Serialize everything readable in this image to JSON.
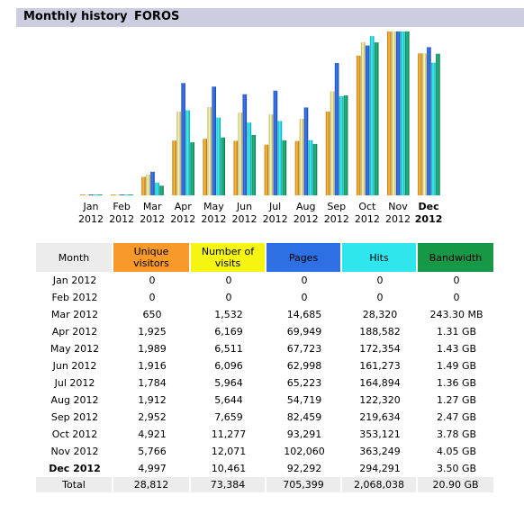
{
  "header": {
    "title": "Monthly history",
    "site": "FOROS"
  },
  "colors": {
    "unique_visitors": "#f89a2a",
    "visits": "#f0e08c",
    "pages": "#2d63d8",
    "hits": "#22d8e8",
    "bandwidth": "#159c6a",
    "header_bg": "#cccdde"
  },
  "chart_data": {
    "type": "bar",
    "categories": [
      "Jan 2012",
      "Feb 2012",
      "Mar 2012",
      "Apr 2012",
      "May 2012",
      "Jun 2012",
      "Jul 2012",
      "Aug 2012",
      "Sep 2012",
      "Oct 2012",
      "Nov 2012",
      "Dec 2012"
    ],
    "month_labels": [
      "Jan",
      "Feb",
      "Mar",
      "Apr",
      "May",
      "Jun",
      "Jul",
      "Aug",
      "Sep",
      "Oct",
      "Nov",
      "Dec"
    ],
    "year_labels": [
      "2012",
      "2012",
      "2012",
      "2012",
      "2012",
      "2012",
      "2012",
      "2012",
      "2012",
      "2012",
      "2012",
      "2012"
    ],
    "current_index": 11,
    "series": [
      {
        "key": "unique_visitors",
        "values": [
          0,
          0,
          650,
          1925,
          1989,
          1916,
          1784,
          1912,
          2952,
          4921,
          5766,
          4997
        ]
      },
      {
        "key": "visits",
        "values": [
          0,
          0,
          1532,
          6169,
          6511,
          6096,
          5964,
          5644,
          7659,
          11277,
          12071,
          10461
        ]
      },
      {
        "key": "pages",
        "values": [
          0,
          0,
          14685,
          69949,
          67723,
          62998,
          65223,
          54719,
          82459,
          93291,
          102060,
          92292
        ]
      },
      {
        "key": "hits",
        "values": [
          0,
          0,
          28320,
          188582,
          172354,
          161273,
          164894,
          122320,
          219634,
          353121,
          363249,
          294291
        ]
      },
      {
        "key": "bandwidth_gb",
        "values": [
          0,
          0,
          0.2376,
          1.31,
          1.43,
          1.49,
          1.36,
          1.27,
          2.47,
          3.78,
          4.05,
          3.5
        ]
      }
    ]
  },
  "table": {
    "headers": {
      "month": "Month",
      "unique_visitors": [
        "Unique",
        "visitors"
      ],
      "visits": [
        "Number of",
        "visits"
      ],
      "pages": "Pages",
      "hits": "Hits",
      "bandwidth": "Bandwidth"
    },
    "rows": [
      [
        "Jan 2012",
        "0",
        "0",
        "0",
        "0",
        "0"
      ],
      [
        "Feb 2012",
        "0",
        "0",
        "0",
        "0",
        "0"
      ],
      [
        "Mar 2012",
        "650",
        "1,532",
        "14,685",
        "28,320",
        "243.30 MB"
      ],
      [
        "Apr 2012",
        "1,925",
        "6,169",
        "69,949",
        "188,582",
        "1.31 GB"
      ],
      [
        "May 2012",
        "1,989",
        "6,511",
        "67,723",
        "172,354",
        "1.43 GB"
      ],
      [
        "Jun 2012",
        "1,916",
        "6,096",
        "62,998",
        "161,273",
        "1.49 GB"
      ],
      [
        "Jul 2012",
        "1,784",
        "5,964",
        "65,223",
        "164,894",
        "1.36 GB"
      ],
      [
        "Aug 2012",
        "1,912",
        "5,644",
        "54,719",
        "122,320",
        "1.27 GB"
      ],
      [
        "Sep 2012",
        "2,952",
        "7,659",
        "82,459",
        "219,634",
        "2.47 GB"
      ],
      [
        "Oct 2012",
        "4,921",
        "11,277",
        "93,291",
        "353,121",
        "3.78 GB"
      ],
      [
        "Nov 2012",
        "5,766",
        "12,071",
        "102,060",
        "363,249",
        "4.05 GB"
      ],
      [
        "Dec 2012",
        "4,997",
        "10,461",
        "92,292",
        "294,291",
        "3.50 GB"
      ]
    ],
    "total": [
      "Total",
      "28,812",
      "73,384",
      "705,399",
      "2,068,038",
      "20.90 GB"
    ]
  }
}
